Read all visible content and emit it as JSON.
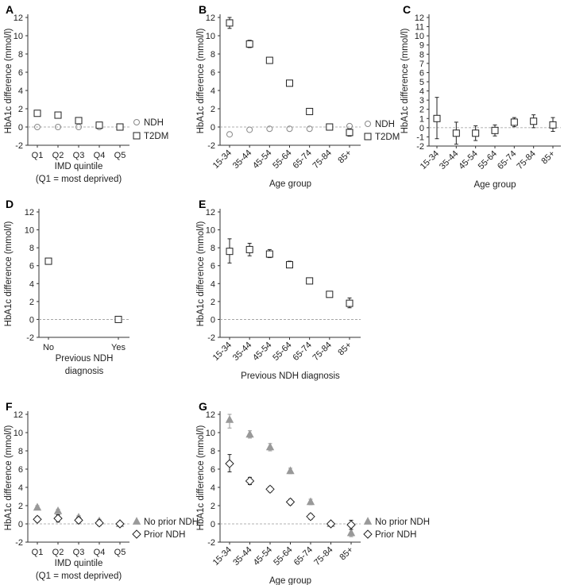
{
  "figure": {
    "ylabel": "HbA1c difference (mmol/l)",
    "y_ticks": [
      "-2",
      "0",
      "2",
      "4",
      "6",
      "8",
      "10",
      "12"
    ],
    "y_ticks_full": [
      "-2",
      "-1",
      "0",
      "1",
      "2",
      "3",
      "4",
      "5",
      "6",
      "7",
      "8",
      "9",
      "10",
      "11",
      "12"
    ]
  },
  "chart_data": [
    {
      "panel": "A",
      "type": "scatter",
      "categories": [
        "Q1",
        "Q2",
        "Q3",
        "Q4",
        "Q5"
      ],
      "xlabel": "IMD quintile",
      "xlabel2": "(Q1 = most deprived)",
      "ylabel": "HbA1c difference (mmol/l)",
      "ylim": [
        -2,
        12
      ],
      "series": [
        {
          "name": "NDH",
          "marker": "circle",
          "values": [
            0,
            0,
            0,
            0,
            0
          ]
        },
        {
          "name": "T2DM",
          "marker": "square",
          "values": [
            1.5,
            1.3,
            0.7,
            0.2,
            0
          ],
          "err_low": [
            1.2,
            1.0,
            0.4,
            -0.1,
            0
          ],
          "err_high": [
            1.8,
            1.6,
            1.0,
            0.5,
            0
          ]
        }
      ],
      "legend": [
        "NDH",
        "T2DM"
      ]
    },
    {
      "panel": "B",
      "type": "scatter",
      "categories": [
        "15-34",
        "35-44",
        "45-54",
        "55-64",
        "65-74",
        "75-84",
        "85+"
      ],
      "xlabel": "Age group",
      "ylabel": "HbA1c difference (mmol/l)",
      "ylim": [
        -2,
        12
      ],
      "series": [
        {
          "name": "NDH",
          "marker": "circle",
          "values": [
            -0.8,
            -0.3,
            -0.2,
            -0.2,
            -0.2,
            0,
            0.1
          ]
        },
        {
          "name": "T2DM",
          "marker": "square",
          "values": [
            11.4,
            9.1,
            7.3,
            4.8,
            1.7,
            0,
            -0.6
          ],
          "err_low": [
            10.8,
            8.7,
            7.0,
            4.6,
            1.4,
            0,
            -1.0
          ],
          "err_high": [
            12.0,
            9.5,
            7.6,
            5.0,
            2.0,
            0,
            -0.2
          ]
        }
      ],
      "legend": [
        "NDH",
        "T2DM"
      ]
    },
    {
      "panel": "C",
      "type": "scatter",
      "categories": [
        "15-34",
        "35-44",
        "45-54",
        "55-64",
        "65-74",
        "75-84",
        "85+"
      ],
      "xlabel": "Age group",
      "ylabel": "HbA1c difference (mmol/l)",
      "ylim": [
        -2,
        12
      ],
      "series": [
        {
          "name": "",
          "marker": "square",
          "values": [
            1.0,
            -0.6,
            -0.6,
            -0.3,
            0.6,
            0.7,
            0.3
          ],
          "err_low": [
            -1.2,
            -1.8,
            -1.4,
            -0.9,
            0.1,
            0.0,
            -0.4
          ],
          "err_high": [
            3.3,
            0.6,
            0.2,
            0.3,
            1.1,
            1.4,
            1.1
          ]
        }
      ]
    },
    {
      "panel": "D",
      "type": "scatter",
      "categories": [
        "No",
        "Yes"
      ],
      "xlabel": "Previous NDH",
      "xlabel2": "diagnosis",
      "ylabel": "HbA1c difference (mmol/l)",
      "ylim": [
        -2,
        12
      ],
      "series": [
        {
          "name": "",
          "marker": "square",
          "values": [
            6.5,
            0
          ],
          "err_low": [
            6.3,
            0
          ],
          "err_high": [
            6.7,
            0
          ]
        }
      ]
    },
    {
      "panel": "E",
      "type": "scatter",
      "categories": [
        "15-34",
        "35-44",
        "45-54",
        "55-64",
        "65-74",
        "75-84",
        "85+"
      ],
      "xlabel": "Previous NDH diagnosis",
      "ylabel": "HbA1c difference (mmol/l)",
      "ylim": [
        -2,
        12
      ],
      "series": [
        {
          "name": "",
          "marker": "square",
          "values": [
            7.6,
            7.8,
            7.3,
            6.1,
            4.3,
            2.8,
            1.8
          ],
          "err_low": [
            6.3,
            7.1,
            6.9,
            5.8,
            4.1,
            2.5,
            1.3
          ],
          "err_high": [
            9.0,
            8.5,
            7.8,
            6.5,
            4.5,
            3.1,
            2.4
          ]
        }
      ]
    },
    {
      "panel": "F",
      "type": "scatter",
      "categories": [
        "Q1",
        "Q2",
        "Q3",
        "Q4",
        "Q5"
      ],
      "xlabel": "IMD quintile",
      "xlabel2": "(Q1 = most deprived)",
      "ylabel": "HbA1c difference (mmol/l)",
      "ylim": [
        -2,
        12
      ],
      "series": [
        {
          "name": "No prior NDH",
          "marker": "triangle",
          "values": [
            1.8,
            1.4,
            0.7,
            0.3,
            0
          ],
          "err_low": [
            1.6,
            1.2,
            0.5,
            0.1,
            0
          ],
          "err_high": [
            2.0,
            1.6,
            0.9,
            0.5,
            0
          ]
        },
        {
          "name": "Prior NDH",
          "marker": "diamond",
          "values": [
            0.5,
            0.6,
            0.4,
            0.1,
            0
          ],
          "err_low": [
            0.2,
            0.2,
            0.1,
            -0.2,
            0
          ],
          "err_high": [
            0.8,
            1.0,
            0.7,
            0.4,
            0
          ]
        }
      ],
      "legend": [
        "No prior NDH",
        "Prior NDH"
      ]
    },
    {
      "panel": "G",
      "type": "scatter",
      "categories": [
        "15-34",
        "35-44",
        "45-54",
        "55-64",
        "65-74",
        "75-84",
        "85+"
      ],
      "xlabel": "Age group",
      "ylabel": "HbA1c difference (mmol/l)",
      "ylim": [
        -2,
        12
      ],
      "series": [
        {
          "name": "No prior NDH",
          "marker": "triangle",
          "values": [
            11.4,
            9.8,
            8.4,
            5.8,
            2.4,
            0,
            -1.0
          ],
          "err_low": [
            10.5,
            9.4,
            8.0,
            5.5,
            2.1,
            0,
            -1.4
          ],
          "err_high": [
            12.0,
            10.2,
            8.8,
            6.1,
            2.7,
            0,
            -0.6
          ]
        },
        {
          "name": "Prior NDH",
          "marker": "diamond",
          "values": [
            6.6,
            4.7,
            3.8,
            2.4,
            0.8,
            0,
            -0.1
          ],
          "err_low": [
            5.7,
            4.3,
            3.5,
            2.1,
            0.5,
            0,
            -0.6
          ],
          "err_high": [
            7.6,
            5.1,
            4.1,
            2.7,
            1.1,
            0,
            0.4
          ]
        }
      ],
      "legend": [
        "No prior NDH",
        "Prior NDH"
      ]
    }
  ]
}
